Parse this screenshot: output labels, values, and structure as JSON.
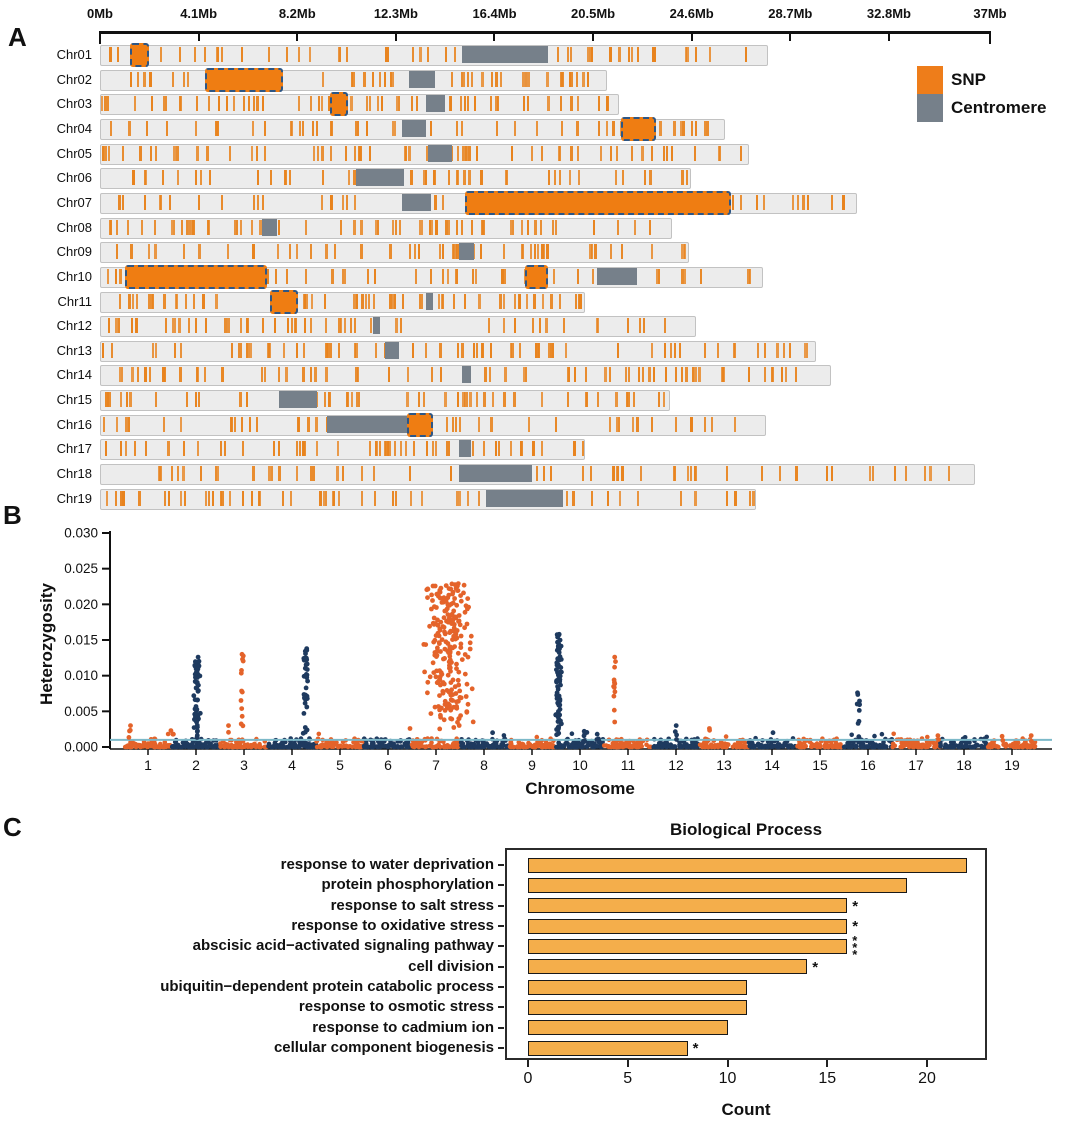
{
  "panel_labels": {
    "a": "A",
    "b": "B",
    "c": "C"
  },
  "chart_data": [
    {
      "id": "chromosome_snp_map",
      "type": "ideogram",
      "axis_unit": "Mb",
      "axis_max_mb": 37,
      "axis_ticks": [
        {
          "label": "0Mb",
          "mb": 0
        },
        {
          "label": "4.1Mb",
          "mb": 4.1
        },
        {
          "label": "8.2Mb",
          "mb": 8.2
        },
        {
          "label": "12.3Mb",
          "mb": 12.3
        },
        {
          "label": "16.4Mb",
          "mb": 16.4
        },
        {
          "label": "20.5Mb",
          "mb": 20.5
        },
        {
          "label": "24.6Mb",
          "mb": 24.6
        },
        {
          "label": "28.7Mb",
          "mb": 28.7
        },
        {
          "label": "32.8Mb",
          "mb": 32.8
        },
        {
          "label": "37Mb",
          "mb": 37
        }
      ],
      "legend": [
        {
          "label": "SNP",
          "color": "#EE7D1A"
        },
        {
          "label": "Centromere",
          "color": "#76808A"
        }
      ],
      "snp_color": "#E8831D",
      "centromere_color": "#76808A",
      "highlight_fill": "#EF7D12",
      "highlight_border": "#2D5685",
      "chromosomes": [
        {
          "name": "Chr01",
          "length_mb": 27.7,
          "centromere_mb": [
            15.0,
            18.6
          ],
          "highlights_mb": [
            [
              1.3,
              1.9
            ]
          ],
          "snp_count": 58
        },
        {
          "name": "Chr02",
          "length_mb": 21.0,
          "centromere_mb": [
            12.8,
            13.9
          ],
          "highlights_mb": [
            [
              4.4,
              7.5
            ]
          ],
          "snp_count": 46
        },
        {
          "name": "Chr03",
          "length_mb": 21.5,
          "centromere_mb": [
            13.5,
            14.3
          ],
          "highlights_mb": [
            [
              9.6,
              10.2
            ]
          ],
          "snp_count": 60
        },
        {
          "name": "Chr04",
          "length_mb": 25.9,
          "centromere_mb": [
            12.5,
            13.5
          ],
          "highlights_mb": [
            [
              21.7,
              23.0
            ]
          ],
          "snp_count": 50
        },
        {
          "name": "Chr05",
          "length_mb": 26.9,
          "centromere_mb": [
            13.6,
            14.6
          ],
          "highlights_mb": [],
          "snp_count": 58
        },
        {
          "name": "Chr06",
          "length_mb": 24.5,
          "centromere_mb": [
            10.6,
            12.6
          ],
          "highlights_mb": [],
          "snp_count": 44
        },
        {
          "name": "Chr07",
          "length_mb": 31.4,
          "centromere_mb": [
            12.5,
            13.7
          ],
          "highlights_mb": [
            [
              15.2,
              26.1
            ]
          ],
          "snp_count": 52
        },
        {
          "name": "Chr08",
          "length_mb": 23.7,
          "centromere_mb": [
            6.7,
            7.3
          ],
          "highlights_mb": [],
          "snp_count": 58
        },
        {
          "name": "Chr09",
          "length_mb": 24.4,
          "centromere_mb": [
            14.9,
            15.5
          ],
          "highlights_mb": [],
          "snp_count": 48
        },
        {
          "name": "Chr10",
          "length_mb": 27.5,
          "centromere_mb": [
            20.6,
            22.3
          ],
          "highlights_mb": [
            [
              1.1,
              6.8
            ],
            [
              17.7,
              18.5
            ]
          ],
          "snp_count": 50
        },
        {
          "name": "Chr11",
          "length_mb": 20.1,
          "centromere_mb": [
            13.5,
            13.8
          ],
          "highlights_mb": [
            [
              7.1,
              8.1
            ]
          ],
          "snp_count": 56
        },
        {
          "name": "Chr12",
          "length_mb": 24.7,
          "centromere_mb": [
            11.3,
            11.6
          ],
          "highlights_mb": [],
          "snp_count": 54
        },
        {
          "name": "Chr13",
          "length_mb": 29.7,
          "centromere_mb": [
            11.8,
            12.4
          ],
          "highlights_mb": [],
          "snp_count": 66
        },
        {
          "name": "Chr14",
          "length_mb": 30.3,
          "centromere_mb": [
            15.0,
            15.4
          ],
          "highlights_mb": [],
          "snp_count": 62
        },
        {
          "name": "Chr15",
          "length_mb": 23.6,
          "centromere_mb": [
            7.4,
            9.0
          ],
          "highlights_mb": [],
          "snp_count": 52
        },
        {
          "name": "Chr16",
          "length_mb": 27.6,
          "centromere_mb": [
            9.4,
            12.8
          ],
          "highlights_mb": [
            [
              12.8,
              13.7
            ]
          ],
          "snp_count": 54
        },
        {
          "name": "Chr17",
          "length_mb": 20.1,
          "centromere_mb": [
            14.9,
            15.4
          ],
          "highlights_mb": [],
          "snp_count": 52
        },
        {
          "name": "Chr18",
          "length_mb": 36.3,
          "centromere_mb": [
            14.9,
            17.9
          ],
          "highlights_mb": [],
          "snp_count": 60
        },
        {
          "name": "Chr19",
          "length_mb": 27.2,
          "centromere_mb": [
            16.0,
            19.2
          ],
          "highlights_mb": [],
          "snp_count": 58
        }
      ]
    },
    {
      "id": "heterozygosity_manhattan",
      "type": "scatter",
      "xlabel": "Chromosome",
      "ylabel": "Heterozygosity",
      "ylim": [
        0,
        0.03
      ],
      "yticks": [
        "0.000",
        "0.005",
        "0.010",
        "0.015",
        "0.020",
        "0.025",
        "0.030"
      ],
      "xticks": [
        "1",
        "2",
        "3",
        "4",
        "5",
        "6",
        "7",
        "8",
        "9",
        "10",
        "11",
        "12",
        "13",
        "14",
        "15",
        "16",
        "17",
        "18",
        "19"
      ],
      "threshold_line": 0.001,
      "colors": {
        "odd_chromosome": "#E4632A",
        "even_chromosome": "#1E3A5F",
        "threshold": "#7CB9C9"
      },
      "baseline_band": [
        0,
        0.0012
      ],
      "baseline_points_per_chromosome": 70,
      "peaks": [
        {
          "chromosome": 1,
          "x": 0.62,
          "width": 0.1,
          "max": 0.003,
          "points": 4
        },
        {
          "chromosome": 1,
          "x": 1.5,
          "width": 0.08,
          "max": 0.0023,
          "points": 3
        },
        {
          "chromosome": 2,
          "x": 2.02,
          "width": 0.16,
          "max": 0.0126,
          "points": 55
        },
        {
          "chromosome": 3,
          "x": 2.67,
          "width": 0.05,
          "max": 0.003,
          "points": 2
        },
        {
          "chromosome": 3,
          "x": 2.96,
          "width": 0.07,
          "max": 0.013,
          "points": 13
        },
        {
          "chromosome": 4,
          "x": 4.28,
          "width": 0.12,
          "max": 0.0138,
          "points": 34
        },
        {
          "chromosome": 7,
          "x": 6.46,
          "width": 0.04,
          "max": 0.0026,
          "points": 1
        },
        {
          "chromosome": 7,
          "x": 7.25,
          "width": 1.1,
          "max": 0.0229,
          "points": 240
        },
        {
          "chromosome": 8,
          "x": 8.18,
          "width": 0.04,
          "max": 0.002,
          "points": 1
        },
        {
          "chromosome": 10,
          "x": 9.55,
          "width": 0.16,
          "max": 0.0158,
          "points": 80
        },
        {
          "chromosome": 10,
          "x": 10.1,
          "width": 0.12,
          "max": 0.0022,
          "points": 6
        },
        {
          "chromosome": 10,
          "x": 10.38,
          "width": 0.08,
          "max": 0.0018,
          "points": 4
        },
        {
          "chromosome": 11,
          "x": 10.72,
          "width": 0.06,
          "max": 0.0126,
          "points": 12
        },
        {
          "chromosome": 12,
          "x": 12.0,
          "width": 0.07,
          "max": 0.003,
          "points": 4
        },
        {
          "chromosome": 13,
          "x": 12.7,
          "width": 0.05,
          "max": 0.0026,
          "points": 2
        },
        {
          "chromosome": 14,
          "x": 14.02,
          "width": 0.04,
          "max": 0.002,
          "points": 1
        },
        {
          "chromosome": 16,
          "x": 15.8,
          "width": 0.09,
          "max": 0.0076,
          "points": 10
        },
        {
          "chromosome": 17,
          "x": 17.45,
          "width": 0.05,
          "max": 0.0016,
          "points": 2
        },
        {
          "chromosome": 19,
          "x": 18.8,
          "width": 0.05,
          "max": 0.0015,
          "points": 2
        },
        {
          "chromosome": 19,
          "x": 19.4,
          "width": 0.04,
          "max": 0.0016,
          "points": 2
        }
      ]
    },
    {
      "id": "go_biological_process",
      "type": "bar",
      "orientation": "horizontal",
      "title": "Biological Process",
      "xlabel": "Count",
      "xticks": [
        0,
        5,
        10,
        15,
        20
      ],
      "xlim": [
        0,
        23
      ],
      "bar_color": "#F4AE4B",
      "bar_border": "#191919",
      "categories": [
        "response to water deprivation",
        "protein phosphorylation",
        "response to salt stress",
        "response to oxidative stress",
        "abscisic acid−activated signaling pathway",
        "cell division",
        "ubiquitin−dependent protein catabolic process",
        "response to osmotic stress",
        "response to cadmium ion",
        "cellular component biogenesis"
      ],
      "values": [
        22,
        19,
        16,
        16,
        16,
        14,
        11,
        11,
        10,
        8
      ],
      "significance": [
        "",
        "",
        "*",
        "*",
        "***",
        "*",
        "",
        "",
        "",
        "*"
      ]
    }
  ]
}
